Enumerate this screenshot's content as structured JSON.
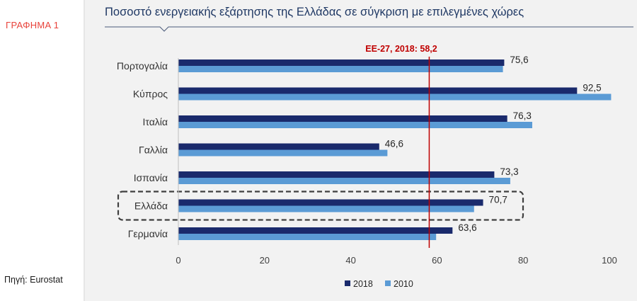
{
  "figure_label": "ΓΡΑΦΗΜΑ 1",
  "source": "Πηγή:  Eurostat",
  "chart_data": {
    "type": "bar",
    "orientation": "horizontal",
    "title": "Ποσοστό ενεργειακής εξάρτησης της Ελλάδας σε σύγκριση με επιλεγμένες χώρες",
    "categories": [
      "Πορτογαλία",
      "Κύπρος",
      "Ιταλία",
      "Γαλλία",
      "Ισπανία",
      "Ελλάδα",
      "Γερμανία"
    ],
    "series": [
      {
        "name": "2018",
        "color": "#1a2a6c",
        "values": [
          75.6,
          92.5,
          76.3,
          46.6,
          73.3,
          70.7,
          63.6
        ]
      },
      {
        "name": "2010",
        "color": "#5b9bd5",
        "values": [
          75.3,
          100.4,
          82.1,
          48.5,
          77.0,
          68.6,
          59.8
        ]
      }
    ],
    "data_labels": [
      "75,6",
      "92,5",
      "76,3",
      "46,6",
      "73,3",
      "70,7",
      "63,6"
    ],
    "xlim": [
      0,
      100
    ],
    "xticks": [
      0,
      20,
      40,
      60,
      80,
      100
    ],
    "xtick_labels": [
      "0",
      "20",
      "40",
      "60",
      "80",
      "100"
    ],
    "reference_line": {
      "value": 58.2,
      "label": "ΕΕ-27,  2018: 58,2",
      "color": "#c00000"
    },
    "highlighted_category": "Ελλάδα",
    "legend_position": "bottom",
    "grid": false
  }
}
